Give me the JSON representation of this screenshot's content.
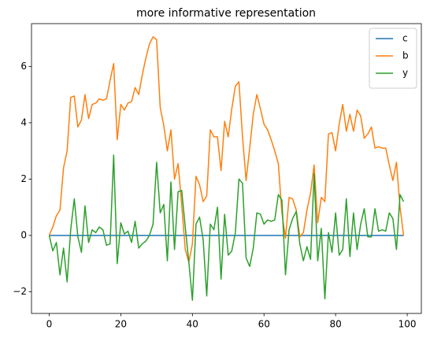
{
  "chart_data": {
    "type": "line",
    "title": "more informative representation",
    "x": [
      0,
      1,
      2,
      3,
      4,
      5,
      6,
      7,
      8,
      9,
      10,
      11,
      12,
      13,
      14,
      15,
      16,
      17,
      18,
      19,
      20,
      21,
      22,
      23,
      24,
      25,
      26,
      27,
      28,
      29,
      30,
      31,
      32,
      33,
      34,
      35,
      36,
      37,
      38,
      39,
      40,
      41,
      42,
      43,
      44,
      45,
      46,
      47,
      48,
      49,
      50,
      51,
      52,
      53,
      54,
      55,
      56,
      57,
      58,
      59,
      60,
      61,
      62,
      63,
      64,
      65,
      66,
      67,
      68,
      69,
      70,
      71,
      72,
      73,
      74,
      75,
      76,
      77,
      78,
      79,
      80,
      81,
      82,
      83,
      84,
      85,
      86,
      87,
      88,
      89,
      90,
      91,
      92,
      93,
      94,
      95,
      96,
      97,
      98,
      99
    ],
    "series": [
      {
        "name": "c",
        "color": "#1f77b4",
        "values": [
          0,
          0,
          0,
          0,
          0,
          0,
          0,
          0,
          0,
          0,
          0,
          0,
          0,
          0,
          0,
          0,
          0,
          0,
          0,
          0,
          0,
          0,
          0,
          0,
          0,
          0,
          0,
          0,
          0,
          0,
          0,
          0,
          0,
          0,
          0,
          0,
          0,
          0,
          0,
          0,
          0,
          0,
          0,
          0,
          0,
          0,
          0,
          0,
          0,
          0,
          0,
          0,
          0,
          0,
          0,
          0,
          0,
          0,
          0,
          0,
          0,
          0,
          0,
          0,
          0,
          0,
          0,
          0,
          0,
          0,
          0,
          0,
          0,
          0,
          0,
          0,
          0,
          0,
          0,
          0,
          0,
          0,
          0,
          0,
          0,
          0,
          0,
          0,
          0,
          0,
          0,
          0,
          0,
          0,
          0,
          0,
          0,
          0,
          0,
          0
        ]
      },
      {
        "name": "b",
        "color": "#ff7f0e",
        "values": [
          0,
          0.3,
          0.7,
          0.9,
          2.4,
          3.0,
          4.9,
          4.95,
          3.85,
          4.1,
          5.0,
          4.15,
          4.65,
          4.7,
          4.85,
          4.8,
          4.85,
          5.5,
          6.1,
          3.4,
          4.65,
          4.45,
          4.7,
          4.75,
          5.25,
          5.0,
          5.7,
          6.3,
          6.8,
          7.05,
          6.95,
          4.55,
          3.9,
          3.0,
          3.75,
          2.0,
          2.55,
          1.1,
          -0.5,
          -0.95,
          -0.3,
          2.1,
          1.8,
          1.2,
          1.4,
          3.75,
          3.5,
          3.5,
          2.3,
          4.05,
          3.5,
          4.5,
          5.3,
          5.45,
          3.5,
          1.95,
          3.1,
          4.3,
          5.0,
          4.5,
          3.95,
          3.75,
          3.4,
          3.0,
          2.55,
          0.8,
          -0.1,
          1.35,
          1.3,
          0.9,
          -0.05,
          0.1,
          0.9,
          1.5,
          2.5,
          0.45,
          1.35,
          1.2,
          3.6,
          3.65,
          3.0,
          3.95,
          4.65,
          3.7,
          4.3,
          3.7,
          4.45,
          4.25,
          3.45,
          3.6,
          3.85,
          3.1,
          3.15,
          3.1,
          3.1,
          2.5,
          1.95,
          2.6,
          1.0,
          0
        ]
      },
      {
        "name": "y",
        "color": "#2ca02c",
        "values": [
          0,
          -0.55,
          -0.25,
          -1.4,
          -0.45,
          -1.65,
          0.2,
          1.3,
          -0.05,
          -0.6,
          1.05,
          -0.25,
          0.2,
          0.1,
          0.3,
          0.2,
          -0.35,
          -0.3,
          2.85,
          -1.0,
          0.45,
          0.05,
          0.15,
          -0.25,
          0.5,
          -0.45,
          -0.3,
          -0.2,
          0.0,
          0.4,
          2.6,
          0.8,
          1.1,
          -0.9,
          1.9,
          -0.5,
          1.55,
          1.6,
          0.3,
          -0.95,
          -2.3,
          0.4,
          0.65,
          -0.15,
          -2.15,
          0.4,
          0.2,
          1.0,
          -1.55,
          0.75,
          -0.7,
          -0.55,
          0.1,
          2.0,
          1.85,
          -0.8,
          -1.1,
          -0.45,
          0.8,
          0.75,
          0.4,
          0.55,
          0.5,
          0.55,
          1.45,
          1.25,
          -1.4,
          0.2,
          0.6,
          0.85,
          -0.3,
          -0.9,
          -0.4,
          -0.85,
          2.2,
          -0.9,
          0.25,
          -2.25,
          0.1,
          -0.6,
          0.8,
          -0.7,
          -0.5,
          1.3,
          -0.75,
          0.8,
          -0.5,
          0.4,
          0.95,
          -0.05,
          -0.05,
          0.95,
          0.15,
          0.2,
          0.15,
          0.8,
          0.6,
          -0.5,
          1.45,
          1.2
        ]
      }
    ],
    "xlim": [
      -4.95,
      103.95
    ],
    "xticks": [
      0,
      20,
      40,
      60,
      80,
      100
    ],
    "ylim": [
      -2.77,
      7.52
    ],
    "yticks": [
      {
        "value": -2,
        "label": "−2"
      },
      0,
      2,
      4,
      6
    ],
    "legend": "upper right"
  }
}
